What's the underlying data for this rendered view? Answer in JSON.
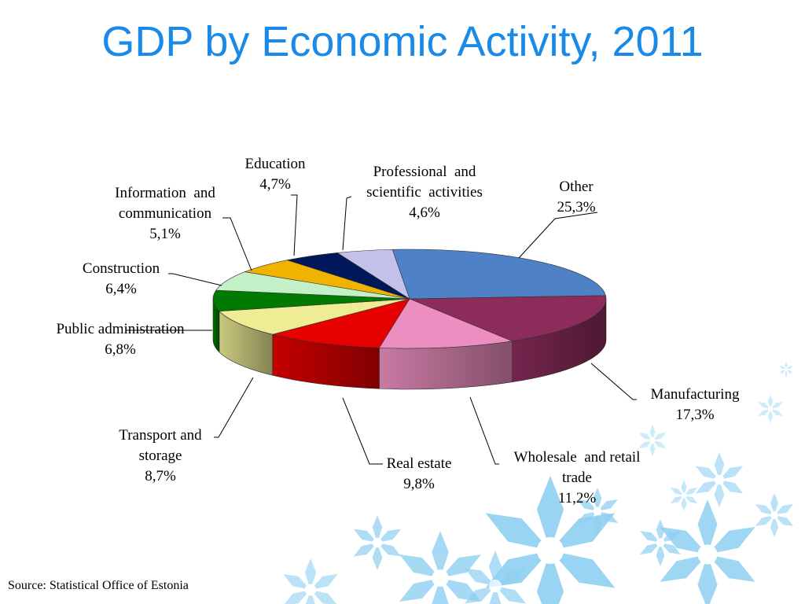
{
  "slide": {
    "title": "GDP by Economic Activity, 2011",
    "source": "Source: Statistical Office of Estonia"
  },
  "chart_data": {
    "type": "pie",
    "title": "GDP by Economic Activity, 2011",
    "unit": "%",
    "slices": [
      {
        "label_lines": [
          "Other"
        ],
        "value": 25.3,
        "value_text": "25,3%",
        "color": "#4f81c7"
      },
      {
        "label_lines": [
          "Manufacturing"
        ],
        "value": 17.3,
        "value_text": "17,3%",
        "color": "#8b2c5a"
      },
      {
        "label_lines": [
          "Wholesale  and retail",
          "trade"
        ],
        "value": 11.2,
        "value_text": "11,2%",
        "color": "#ec8fc0"
      },
      {
        "label_lines": [
          "Real estate"
        ],
        "value": 9.8,
        "value_text": "9,8%",
        "color": "#e60000"
      },
      {
        "label_lines": [
          "Transport and",
          "storage"
        ],
        "value": 8.7,
        "value_text": "8,7%",
        "color": "#eeec94"
      },
      {
        "label_lines": [
          "Public administration"
        ],
        "value": 6.8,
        "value_text": "6,8%",
        "color": "#007a00"
      },
      {
        "label_lines": [
          "Construction"
        ],
        "value": 6.4,
        "value_text": "6,4%",
        "color": "#c3f0c6"
      },
      {
        "label_lines": [
          "Information  and",
          "communication"
        ],
        "value": 5.1,
        "value_text": "5,1%",
        "color": "#f0b400"
      },
      {
        "label_lines": [
          "Education"
        ],
        "value": 4.7,
        "value_text": "4,7%",
        "color": "#00185a"
      },
      {
        "label_lines": [
          "Professional  and",
          "scientific  activities"
        ],
        "value": 4.6,
        "value_text": "4,6%",
        "color": "#c3c0ec"
      }
    ]
  }
}
